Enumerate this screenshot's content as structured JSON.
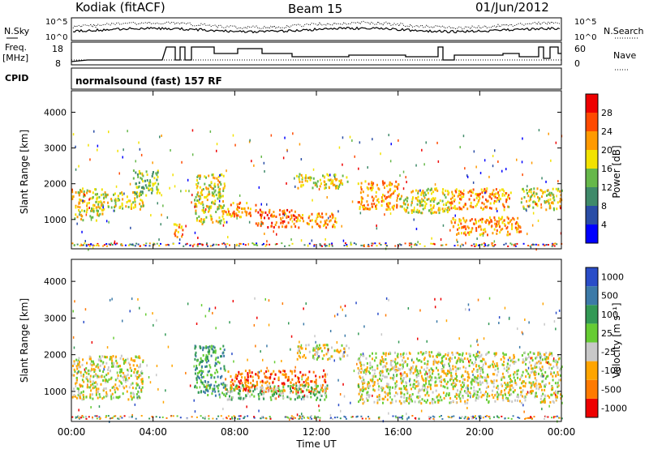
{
  "header": {
    "station": "Kodiak (fitACF)",
    "beam": "Beam 15",
    "date": "01/Jun/2012"
  },
  "top_panels": {
    "nsky_label": "N.Sky",
    "nsky_ticks": [
      "10^5",
      "10^0"
    ],
    "nsearch_label": "N.Search",
    "nsearch_ticks": [
      "10^5",
      "10^0"
    ],
    "freq_label_1": "Freq.",
    "freq_label_2": "[MHz]",
    "freq_ticks": [
      "18",
      "8"
    ],
    "nave_label": "Nave",
    "nave_ticks": [
      "60",
      "0"
    ],
    "cpid_label": "CPID",
    "cpid_text": "normalsound (fast) 157 RF"
  },
  "chart_data": [
    {
      "type": "heatmap",
      "panel": "power",
      "ylabel": "Slant Range [km]",
      "yticks": [
        1000,
        2000,
        3000,
        4000
      ],
      "ylim": [
        180,
        4600
      ],
      "xticks": [
        "00:00",
        "04:00",
        "08:00",
        "12:00",
        "16:00",
        "20:00",
        "00:00"
      ],
      "xlim_hours": [
        0,
        24
      ],
      "colorbar": {
        "label": "Power [dB]",
        "ticks": [
          "28",
          "24",
          "20",
          "16",
          "12",
          "8",
          "4"
        ],
        "colors": [
          "#0000ff",
          "#2a4da6",
          "#3f8a6a",
          "#66b84a",
          "#f2e200",
          "#ff9a00",
          "#ff4a00",
          "#ee0000"
        ]
      },
      "scatter_regions": [
        {
          "t": [
            0.0,
            1.5
          ],
          "r": [
            1000,
            1900
          ],
          "level": 4
        },
        {
          "t": [
            1.5,
            3.5
          ],
          "r": [
            1300,
            1800
          ],
          "level": 4
        },
        {
          "t": [
            3.0,
            4.3
          ],
          "r": [
            1700,
            2400
          ],
          "level": 3
        },
        {
          "t": [
            5.0,
            5.5
          ],
          "r": [
            500,
            900
          ],
          "level": 5
        },
        {
          "t": [
            6.0,
            7.5
          ],
          "r": [
            900,
            2300
          ],
          "level": 4
        },
        {
          "t": [
            7.5,
            9.0
          ],
          "r": [
            1100,
            1500
          ],
          "level": 5
        },
        {
          "t": [
            9.0,
            11.0
          ],
          "r": [
            800,
            1300
          ],
          "level": 6
        },
        {
          "t": [
            11.0,
            13.0
          ],
          "r": [
            800,
            1200
          ],
          "level": 5
        },
        {
          "t": [
            11.0,
            13.5
          ],
          "r": [
            1900,
            2300
          ],
          "level": 4
        },
        {
          "t": [
            14.0,
            16.0
          ],
          "r": [
            1300,
            2100
          ],
          "level": 5
        },
        {
          "t": [
            16.0,
            18.5
          ],
          "r": [
            1200,
            1900
          ],
          "level": 4
        },
        {
          "t": [
            18.5,
            21.5
          ],
          "r": [
            1300,
            1900
          ],
          "level": 5
        },
        {
          "t": [
            18.5,
            22.0
          ],
          "r": [
            600,
            1100
          ],
          "level": 5
        },
        {
          "t": [
            22.0,
            24.0
          ],
          "r": [
            1300,
            1900
          ],
          "level": 4
        }
      ]
    },
    {
      "type": "heatmap",
      "panel": "velocity",
      "ylabel": "Slant Range [km]",
      "yticks": [
        1000,
        2000,
        3000,
        4000
      ],
      "ylim": [
        180,
        4600
      ],
      "xticks": [
        "00:00",
        "04:00",
        "08:00",
        "12:00",
        "16:00",
        "20:00",
        "00:00"
      ],
      "xlabel": "Time UT",
      "xlim_hours": [
        0,
        24
      ],
      "colorbar": {
        "label": "Velocity [m s⁻¹]",
        "ticks": [
          "1000",
          "500",
          "100",
          "25",
          "-25",
          "-100",
          "-500",
          "-1000"
        ],
        "colors": [
          "#ee0000",
          "#ff7a00",
          "#ffa500",
          "#c8c8c8",
          "#66cc33",
          "#339955",
          "#3c7aa8",
          "#2a4dc8"
        ]
      },
      "scatter_regions": [
        {
          "t": [
            0.0,
            3.5
          ],
          "r": [
            800,
            2000
          ],
          "level": 3
        },
        {
          "t": [
            6.0,
            7.5
          ],
          "r": [
            900,
            2300
          ],
          "level": 5
        },
        {
          "t": [
            7.5,
            12.5
          ],
          "r": [
            1000,
            1600
          ],
          "level": 1
        },
        {
          "t": [
            7.5,
            12.5
          ],
          "r": [
            800,
            1200
          ],
          "level": 4
        },
        {
          "t": [
            11.0,
            13.5
          ],
          "r": [
            1900,
            2300
          ],
          "level": 3
        },
        {
          "t": [
            14.0,
            24.0
          ],
          "r": [
            700,
            2100
          ],
          "level": 3
        }
      ]
    }
  ]
}
